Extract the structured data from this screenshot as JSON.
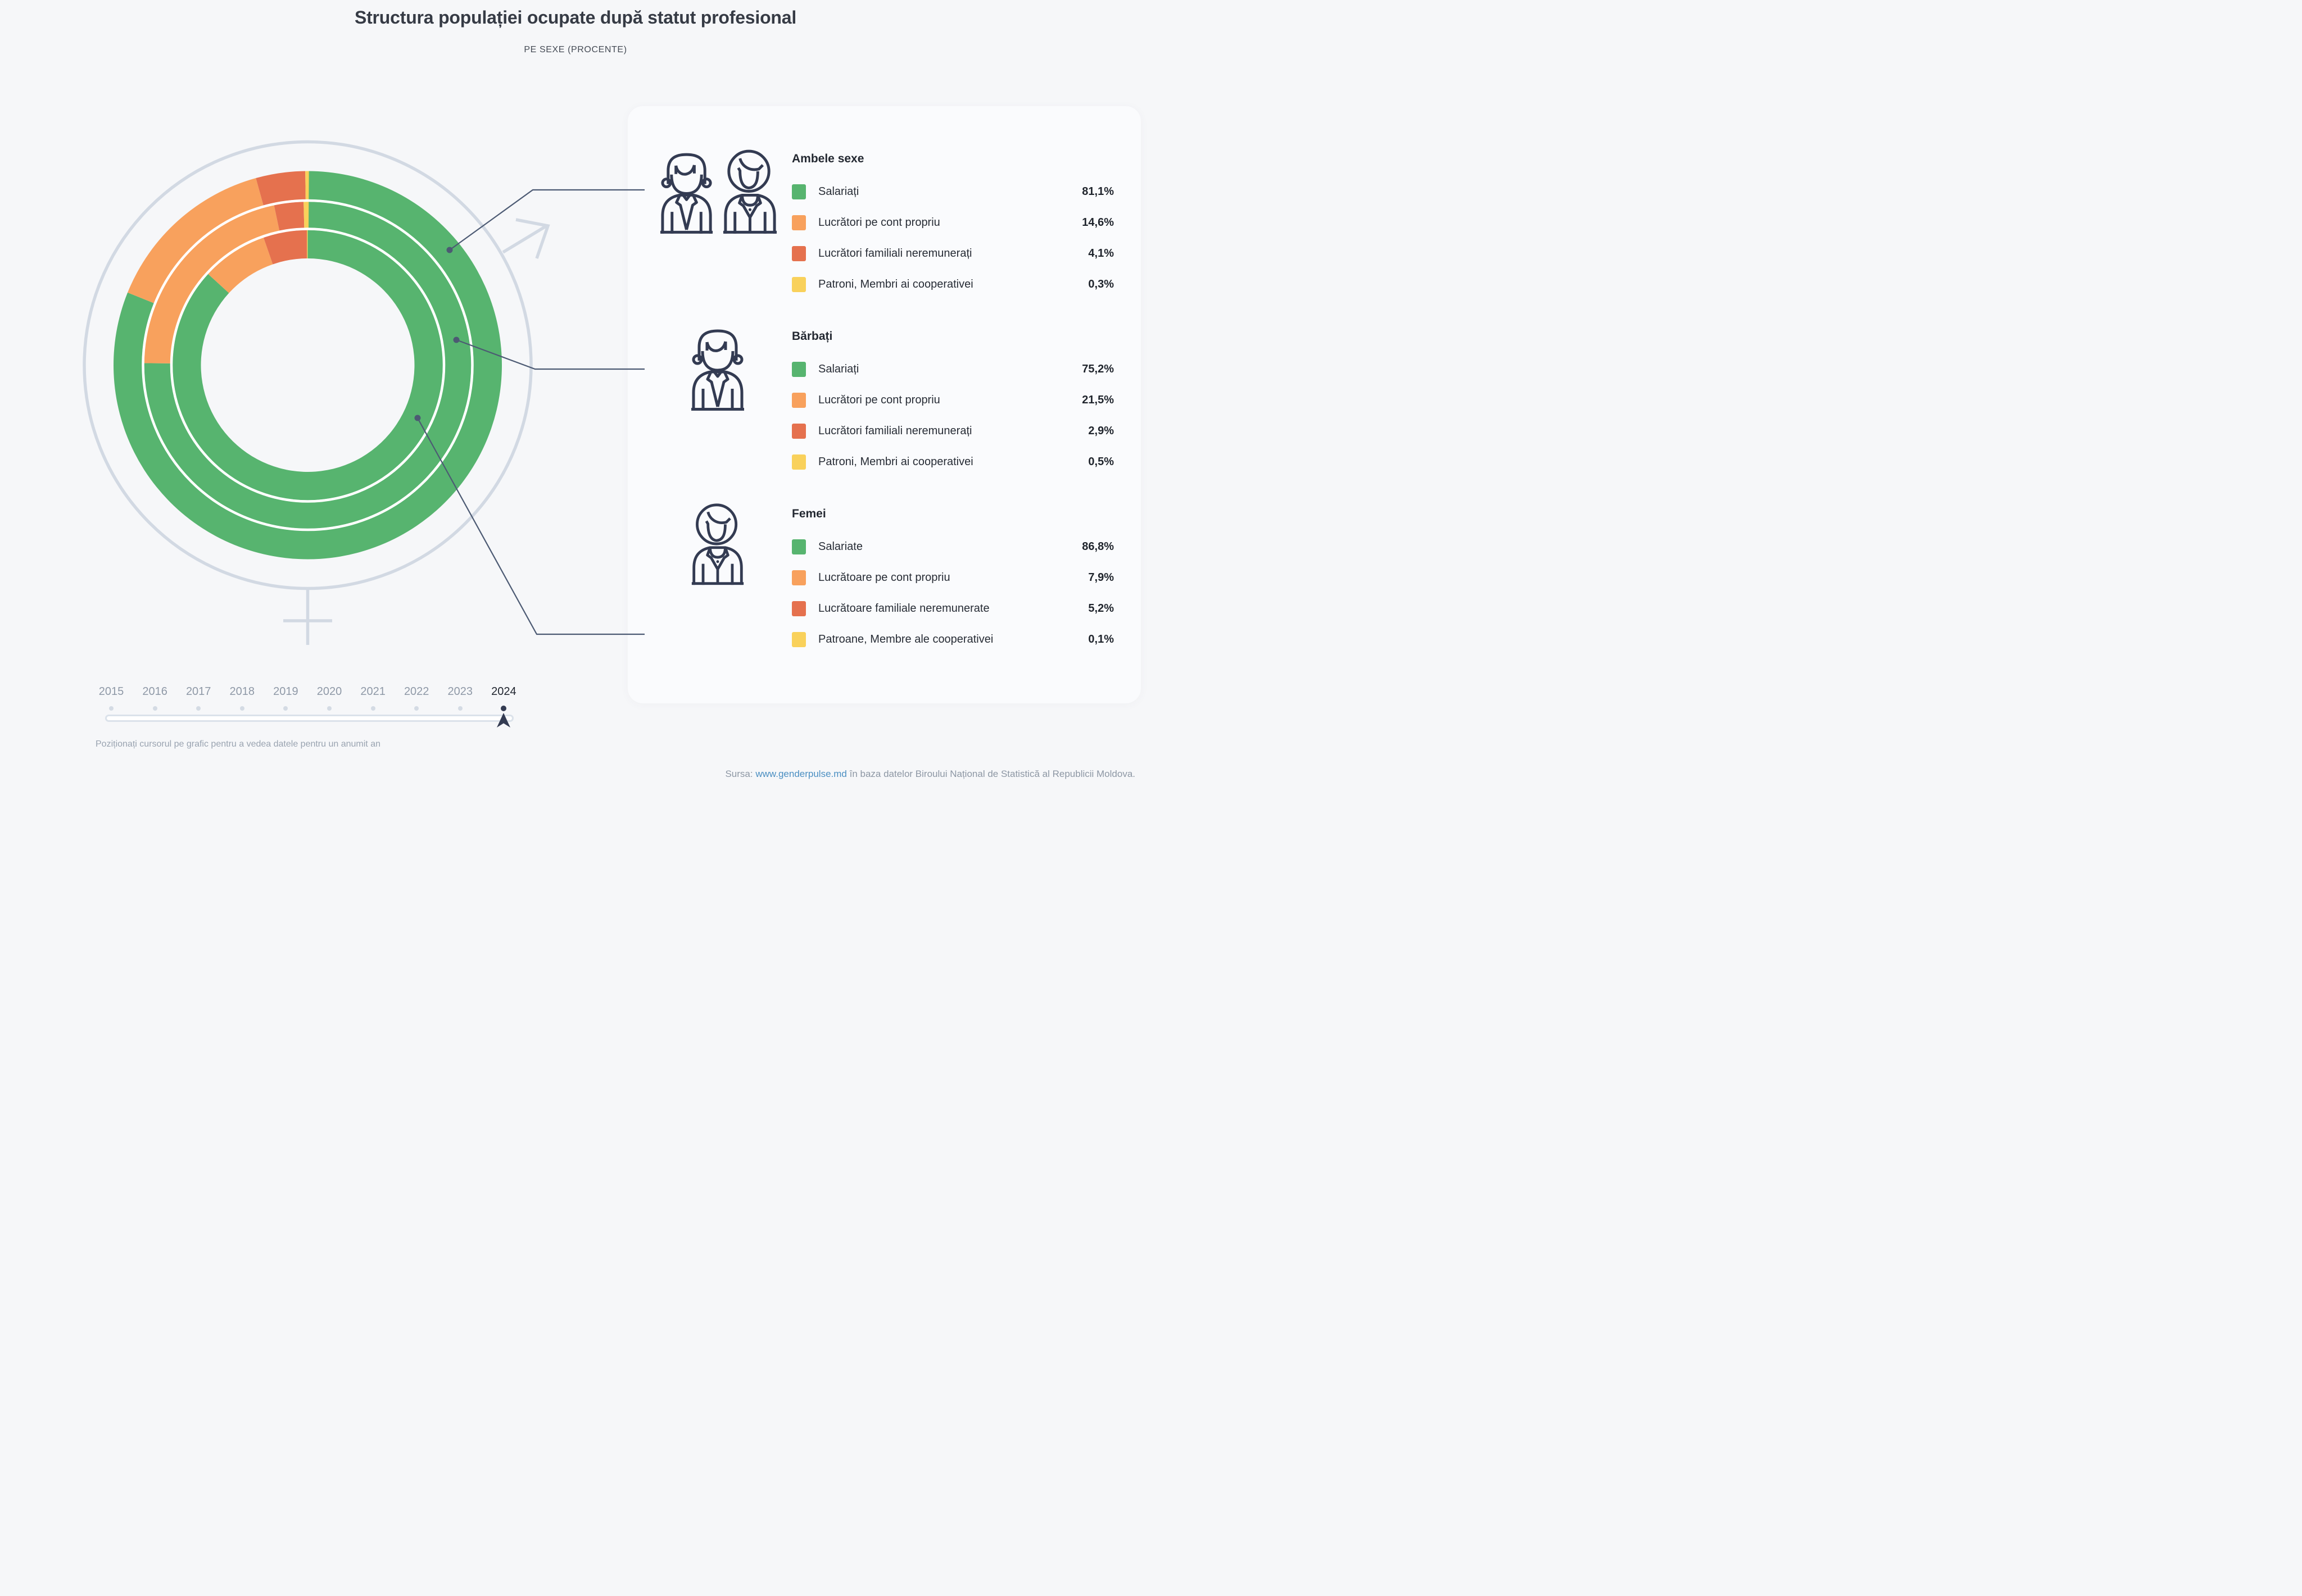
{
  "header": {
    "title": "Structura populației ocupate după statut profesional",
    "subtitle": "PE SEXE (PROCENTE)"
  },
  "chart_data": {
    "type": "donut-multi-ring",
    "unit": "%",
    "year": "2024",
    "start_angle_deg": 0,
    "direction": "clockwise",
    "categories": [
      "Salariați",
      "Lucrători pe cont propriu",
      "Lucrători familiali neremunerați",
      "Patroni, Membri ai cooperativei"
    ],
    "colors": [
      "#57B46F",
      "#F8A15D",
      "#E5714E",
      "#F9D15B"
    ],
    "rings": [
      {
        "name": "Ambele sexe",
        "ring": "outer",
        "values": [
          81.1,
          14.6,
          4.1,
          0.3
        ]
      },
      {
        "name": "Bărbați",
        "ring": "middle",
        "values": [
          75.2,
          21.5,
          2.9,
          0.5
        ]
      },
      {
        "name": "Femei",
        "ring": "inner",
        "values": [
          86.8,
          7.9,
          5.2,
          0.1
        ]
      }
    ]
  },
  "legend": {
    "groups": [
      {
        "heading": "Ambele sexe",
        "icon": "man-woman-icon",
        "items": [
          {
            "label": "Salariați",
            "value": "81,1%"
          },
          {
            "label": "Lucrători pe cont propriu",
            "value": "14,6%"
          },
          {
            "label": "Lucrători familiali neremunerați",
            "value": "4,1%"
          },
          {
            "label": "Patroni, Membri ai cooperativei",
            "value": "0,3%"
          }
        ]
      },
      {
        "heading": "Bărbați",
        "icon": "man-icon",
        "items": [
          {
            "label": "Salariați",
            "value": "75,2%"
          },
          {
            "label": "Lucrători pe cont propriu",
            "value": "21,5%"
          },
          {
            "label": "Lucrători familiali neremunerați",
            "value": "2,9%"
          },
          {
            "label": "Patroni, Membri ai cooperativei",
            "value": "0,5%"
          }
        ]
      },
      {
        "heading": "Femei",
        "icon": "woman-icon",
        "items": [
          {
            "label": "Salariate",
            "value": "86,8%"
          },
          {
            "label": "Lucrătoare pe cont propriu",
            "value": "7,9%"
          },
          {
            "label": "Lucrătoare familiale neremunerate",
            "value": "5,2%"
          },
          {
            "label": "Patroane, Membre ale cooperativei",
            "value": "0,1%"
          }
        ]
      }
    ]
  },
  "slider": {
    "years": [
      "2015",
      "2016",
      "2017",
      "2018",
      "2019",
      "2020",
      "2021",
      "2022",
      "2023",
      "2024"
    ],
    "selected_year": "2024",
    "caption": "Poziționați cursorul pe grafic pentru a vedea datele pentru un anumit an"
  },
  "footer": {
    "source_prefix": "Sursa:",
    "source_link": "www.genderpulse.md",
    "source_suffix": "în baza datelor Biroului Național de Statistică al Republicii Moldova."
  },
  "ui_colors": {
    "background": "#F6F7F9",
    "panel": "#FAFBFD",
    "navy_icon": "#333B52",
    "leader_line": "#4C5A73",
    "decor_gray": "#D2D9E3",
    "link_blue": "#4B8FC2"
  }
}
